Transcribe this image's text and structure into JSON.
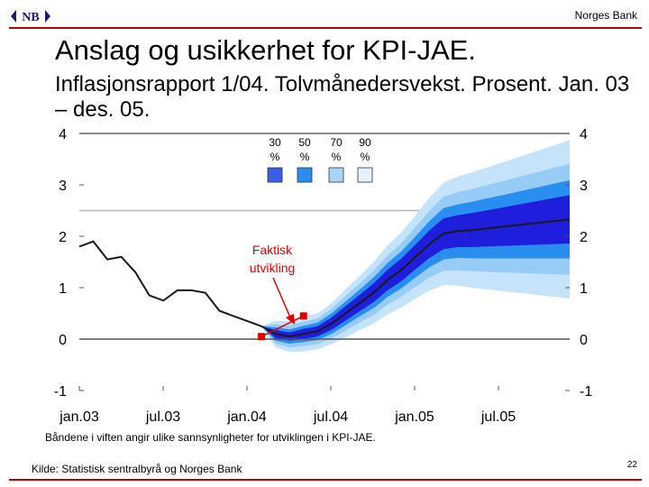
{
  "header": {
    "logo_text": "NB",
    "bank_name": "Norges Bank"
  },
  "title": "Anslag og usikkerhet for KPI-JAE.",
  "subtitle": "Inflasjonsrapport 1/04. Tolvmånedersvekst. Prosent. Jan. 03 – des. 05.",
  "chart_data": {
    "type": "fan-line",
    "xlabel": "",
    "ylabel": "",
    "ylim": [
      -1,
      4
    ],
    "y_ticks": [
      "-1",
      "0",
      "1",
      "2",
      "3",
      "4"
    ],
    "x_ticks": [
      "jan.03",
      "jul.03",
      "jan.04",
      "jul.04",
      "jan.05",
      "jul.05"
    ],
    "x_range_months": [
      0,
      35
    ],
    "colors": {
      "band90": "#c5e4fb",
      "band70": "#96ccf6",
      "band50": "#2a8ef0",
      "band30": "#1e1edc",
      "line": "#1a1a1a",
      "marker": "#e00000",
      "annotation": "#e00000",
      "zero_line": "#555555",
      "grid": "#b4b4b4"
    },
    "legend": [
      {
        "label": "30",
        "unit": "%",
        "color": "#3a5fe6"
      },
      {
        "label": "50",
        "unit": "%",
        "color": "#2a8ef0"
      },
      {
        "label": "70",
        "unit": "%",
        "color": "#a8d4f8"
      },
      {
        "label": "90",
        "unit": "%",
        "color": "#e4f2fd"
      }
    ],
    "actual": {
      "months": [
        0,
        1,
        2,
        3,
        4,
        5,
        6,
        7,
        8,
        9,
        10,
        11,
        12,
        13
      ],
      "values": [
        1.8,
        1.9,
        1.55,
        1.6,
        1.3,
        0.85,
        0.75,
        0.95,
        0.95,
        0.9,
        0.55,
        0.45,
        0.35,
        0.25
      ]
    },
    "projection": {
      "months": [
        13,
        14,
        15,
        16,
        17,
        18,
        19,
        20,
        21,
        22,
        23,
        24,
        25,
        26,
        27,
        28,
        29,
        30,
        31,
        32,
        33,
        34,
        35
      ],
      "median": [
        0.25,
        0.1,
        0.05,
        0.1,
        0.15,
        0.3,
        0.5,
        0.7,
        0.9,
        1.15,
        1.35,
        1.6,
        1.85,
        2.05,
        2.1,
        2.12,
        2.15,
        2.18,
        2.21,
        2.24,
        2.27,
        2.3,
        2.33
      ],
      "band30": {
        "lower": [
          0.25,
          0.02,
          -0.03,
          0.0,
          0.05,
          0.18,
          0.36,
          0.54,
          0.72,
          0.95,
          1.13,
          1.36,
          1.58,
          1.75,
          1.79,
          1.79,
          1.8,
          1.81,
          1.82,
          1.83,
          1.84,
          1.85,
          1.86
        ],
        "upper": [
          0.25,
          0.18,
          0.13,
          0.2,
          0.25,
          0.42,
          0.64,
          0.86,
          1.08,
          1.35,
          1.57,
          1.84,
          2.12,
          2.35,
          2.41,
          2.45,
          2.5,
          2.55,
          2.6,
          2.65,
          2.7,
          2.75,
          2.8
        ]
      },
      "band50": {
        "lower": [
          0.25,
          -0.03,
          -0.09,
          -0.06,
          -0.02,
          0.1,
          0.27,
          0.44,
          0.6,
          0.82,
          0.99,
          1.2,
          1.4,
          1.55,
          1.58,
          1.57,
          1.57,
          1.57,
          1.57,
          1.57,
          1.57,
          1.57,
          1.57
        ],
        "upper": [
          0.25,
          0.23,
          0.19,
          0.26,
          0.32,
          0.5,
          0.73,
          0.96,
          1.2,
          1.48,
          1.71,
          2.0,
          2.3,
          2.55,
          2.62,
          2.67,
          2.73,
          2.79,
          2.85,
          2.91,
          2.97,
          3.03,
          3.09
        ]
      },
      "band70": {
        "lower": [
          0.25,
          -0.09,
          -0.16,
          -0.14,
          -0.1,
          0.01,
          0.16,
          0.32,
          0.47,
          0.67,
          0.83,
          1.02,
          1.2,
          1.33,
          1.34,
          1.32,
          1.31,
          1.3,
          1.29,
          1.28,
          1.27,
          1.26,
          1.25
        ],
        "upper": [
          0.25,
          0.29,
          0.26,
          0.34,
          0.4,
          0.59,
          0.84,
          1.08,
          1.33,
          1.63,
          1.87,
          2.18,
          2.5,
          2.77,
          2.86,
          2.92,
          2.99,
          3.06,
          3.13,
          3.2,
          3.27,
          3.34,
          3.41
        ]
      },
      "band90": {
        "lower": [
          0.25,
          -0.16,
          -0.25,
          -0.24,
          -0.2,
          -0.1,
          0.03,
          0.17,
          0.3,
          0.48,
          0.62,
          0.79,
          0.94,
          1.05,
          1.04,
          1.0,
          0.97,
          0.94,
          0.91,
          0.88,
          0.85,
          0.82,
          0.79
        ],
        "upper": [
          0.25,
          0.36,
          0.35,
          0.44,
          0.5,
          0.7,
          0.97,
          1.23,
          1.5,
          1.82,
          2.08,
          2.41,
          2.76,
          3.05,
          3.16,
          3.24,
          3.33,
          3.42,
          3.51,
          3.6,
          3.69,
          3.78,
          3.87
        ]
      }
    },
    "markers": [
      {
        "month": 13,
        "value": 0.05
      },
      {
        "month": 16,
        "value": 0.45
      }
    ],
    "annotation": {
      "lines": [
        "Faktisk",
        "utvikling"
      ]
    }
  },
  "note": "Båndene i viften angir ulike sannsynligheter for utviklingen i KPI-JAE.",
  "footer": {
    "source": "Kilde: Statistisk sentralbyrå og Norges Bank",
    "page_number": "22"
  }
}
